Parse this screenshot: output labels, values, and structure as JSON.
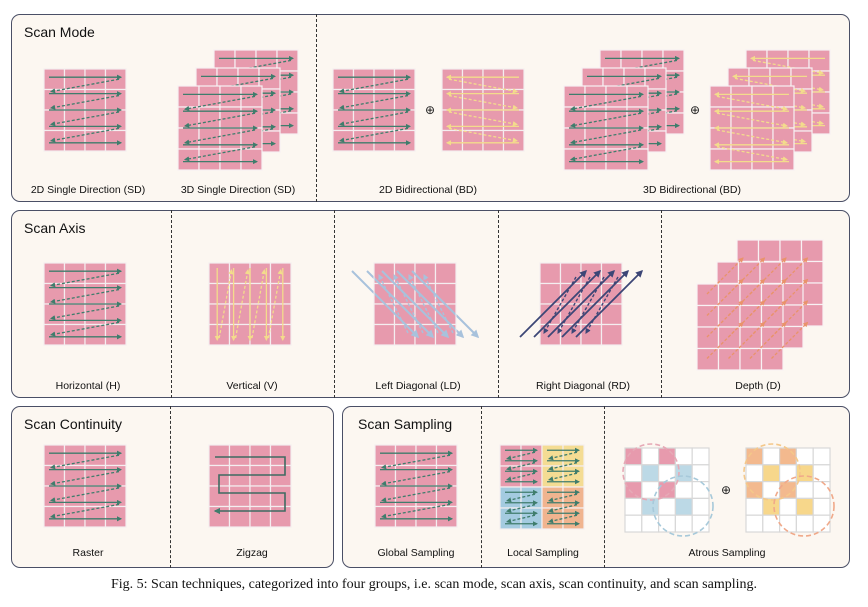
{
  "panels": {
    "mode": {
      "title": "Scan Mode"
    },
    "axis": {
      "title": "Scan Axis"
    },
    "continuity": {
      "title": "Scan Continuity"
    },
    "sampling": {
      "title": "Scan Sampling"
    }
  },
  "labels": {
    "sd2": "2D Single Direction (SD)",
    "sd3": "3D Single Direction (SD)",
    "bd2": "2D Bidirectional (BD)",
    "bd3": "3D Bidirectional (BD)",
    "h": "Horizontal (H)",
    "v": "Vertical (V)",
    "ld": "Left Diagonal (LD)",
    "rd": "Right Diagonal (RD)",
    "d": "Depth (D)",
    "raster": "Raster",
    "zigzag": "Zigzag",
    "global": "Global Sampling",
    "local": "Local Sampling",
    "atrous": "Atrous Sampling"
  },
  "symbols": {
    "plus": "⊕"
  },
  "colors": {
    "cell": "#e79aad",
    "grid_line": "#f4eef0",
    "arrow_green": "#3f7d6c",
    "arrow_yellow": "#f3dc8c",
    "arrow_blue": "#a8c2dc",
    "arrow_navy": "#3c4676",
    "arrow_orange": "#e9936a",
    "atrous_blue": "#bcd9e6",
    "atrous_orange": "#f3b98e",
    "atrous_yellow": "#f7d78b",
    "local_yellow": "#f4dc93",
    "local_blue": "#a4cbe0",
    "local_orange": "#f0b48f"
  },
  "caption": "Fig. 5: Scan techniques, categorized into four groups, i.e. scan mode, scan axis, scan continuity, and scan sampling."
}
